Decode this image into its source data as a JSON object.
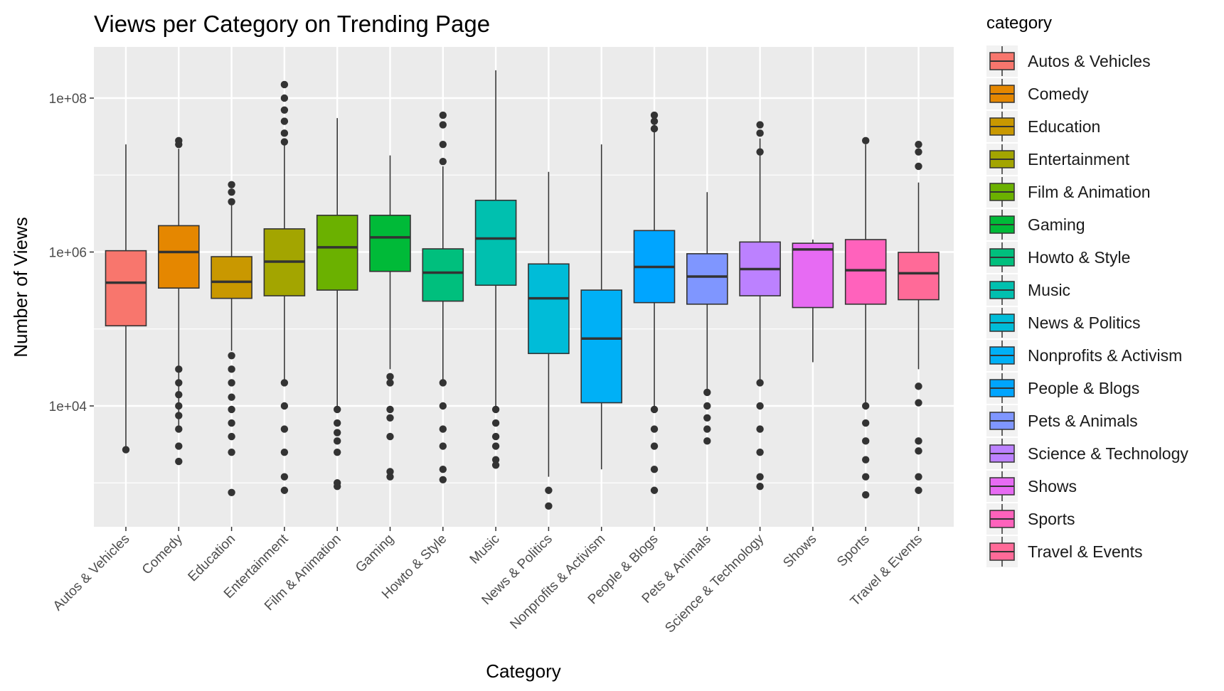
{
  "chart_data": {
    "type": "box",
    "title": "Views per Category on Trending Page",
    "xlabel": "Category",
    "ylabel": "Number of Views",
    "y_scale": "log10",
    "ylim": [
      300,
      400000000
    ],
    "y_ticks": [
      10000,
      1000000,
      100000000
    ],
    "y_tick_labels": [
      "1e+04",
      "1e+06",
      "1e+08"
    ],
    "grid": true,
    "legend_title": "category",
    "legend_position": "right",
    "categories": [
      "Autos & Vehicles",
      "Comedy",
      "Education",
      "Entertainment",
      "Film & Animation",
      "Gaming",
      "Howto & Style",
      "Music",
      "News & Politics",
      "Nonprofits & Activism",
      "People & Blogs",
      "Pets & Animals",
      "Science & Technology",
      "Shows",
      "Sports",
      "Travel & Events"
    ],
    "colors": [
      "#F8766D",
      "#E58700",
      "#C99800",
      "#A3A500",
      "#6BB100",
      "#00BA38",
      "#00BF7D",
      "#00C0AF",
      "#00BCD8",
      "#00B0F6",
      "#00A5FF",
      "#7F96FF",
      "#BC81FF",
      "#E76BF3",
      "#FF62BC",
      "#FF6A98"
    ],
    "boxes": [
      {
        "q1": 110000,
        "median": 400000,
        "q3": 1040000,
        "whisker_low": 2700,
        "whisker_high": 25000000,
        "outliers": [
          2700
        ]
      },
      {
        "q1": 340000,
        "median": 1000000,
        "q3": 2200000,
        "whisker_low": 5000,
        "whisker_high": 22000000,
        "outliers": [
          28000000,
          25000000,
          30000,
          20000,
          14000,
          10000,
          7500,
          5000,
          3000,
          1900
        ]
      },
      {
        "q1": 250000,
        "median": 410000,
        "q3": 870000,
        "whisker_low": 52000,
        "whisker_high": 4500000,
        "outliers": [
          7500000,
          6000000,
          4500000,
          45000,
          30000,
          20000,
          13000,
          9000,
          6000,
          4000,
          2500,
          750
        ]
      },
      {
        "q1": 270000,
        "median": 750000,
        "q3": 2000000,
        "whisker_low": 20000,
        "whisker_high": 27000000,
        "outliers": [
          150000000,
          100000000,
          70000000,
          50000000,
          35000000,
          27000000,
          20000,
          10000,
          5000,
          2500,
          1200,
          800
        ]
      },
      {
        "q1": 320000,
        "median": 1150000,
        "q3": 3000000,
        "whisker_low": 9000,
        "whisker_high": 55000000,
        "outliers": [
          9000,
          6000,
          4500,
          3500,
          2500,
          1000,
          900
        ]
      },
      {
        "q1": 560000,
        "median": 1550000,
        "q3": 3000000,
        "whisker_low": 30000,
        "whisker_high": 18000000,
        "outliers": [
          24000,
          20000,
          9000,
          7000,
          4000,
          1400,
          1200
        ]
      },
      {
        "q1": 230000,
        "median": 540000,
        "q3": 1100000,
        "whisker_low": 20000,
        "whisker_high": 13000000,
        "outliers": [
          60000000,
          45000000,
          25000000,
          15000000,
          20000,
          10000,
          5000,
          3000,
          1500,
          1100
        ]
      },
      {
        "q1": 370000,
        "median": 1500000,
        "q3": 4700000,
        "whisker_low": 10000,
        "whisker_high": 230000000,
        "outliers": [
          9000,
          6000,
          4000,
          3000,
          2000,
          1700
        ]
      },
      {
        "q1": 48000,
        "median": 250000,
        "q3": 700000,
        "whisker_low": 1200,
        "whisker_high": 11000000,
        "outliers": [
          800,
          500
        ]
      },
      {
        "q1": 11000,
        "median": 75000,
        "q3": 320000,
        "whisker_low": 1500,
        "whisker_high": 25000000,
        "outliers": []
      },
      {
        "q1": 220000,
        "median": 640000,
        "q3": 1900000,
        "whisker_low": 9000,
        "whisker_high": 45000000,
        "outliers": [
          60000000,
          50000000,
          40000000,
          9000,
          5000,
          3000,
          1500,
          800
        ]
      },
      {
        "q1": 210000,
        "median": 480000,
        "q3": 950000,
        "whisker_low": 15000,
        "whisker_high": 6000000,
        "outliers": [
          15000,
          10000,
          7000,
          5000,
          3500
        ]
      },
      {
        "q1": 270000,
        "median": 600000,
        "q3": 1350000,
        "whisker_low": 20000,
        "whisker_high": 30000000,
        "outliers": [
          45000000,
          35000000,
          20000000,
          20000,
          10000,
          5000,
          2500,
          1200,
          900
        ]
      },
      {
        "q1": 190000,
        "median": 1080000,
        "q3": 1300000,
        "whisker_low": 37000,
        "whisker_high": 1450000,
        "outliers": []
      },
      {
        "q1": 210000,
        "median": 580000,
        "q3": 1450000,
        "whisker_low": 10000,
        "whisker_high": 25000000,
        "outliers": [
          28000000,
          10000,
          6000,
          3500,
          2000,
          1200,
          700
        ]
      },
      {
        "q1": 240000,
        "median": 530000,
        "q3": 990000,
        "whisker_low": 30000,
        "whisker_high": 8000000,
        "outliers": [
          25000000,
          20000000,
          13000000,
          18000,
          11000,
          3500,
          2600,
          1200,
          800
        ]
      }
    ]
  }
}
